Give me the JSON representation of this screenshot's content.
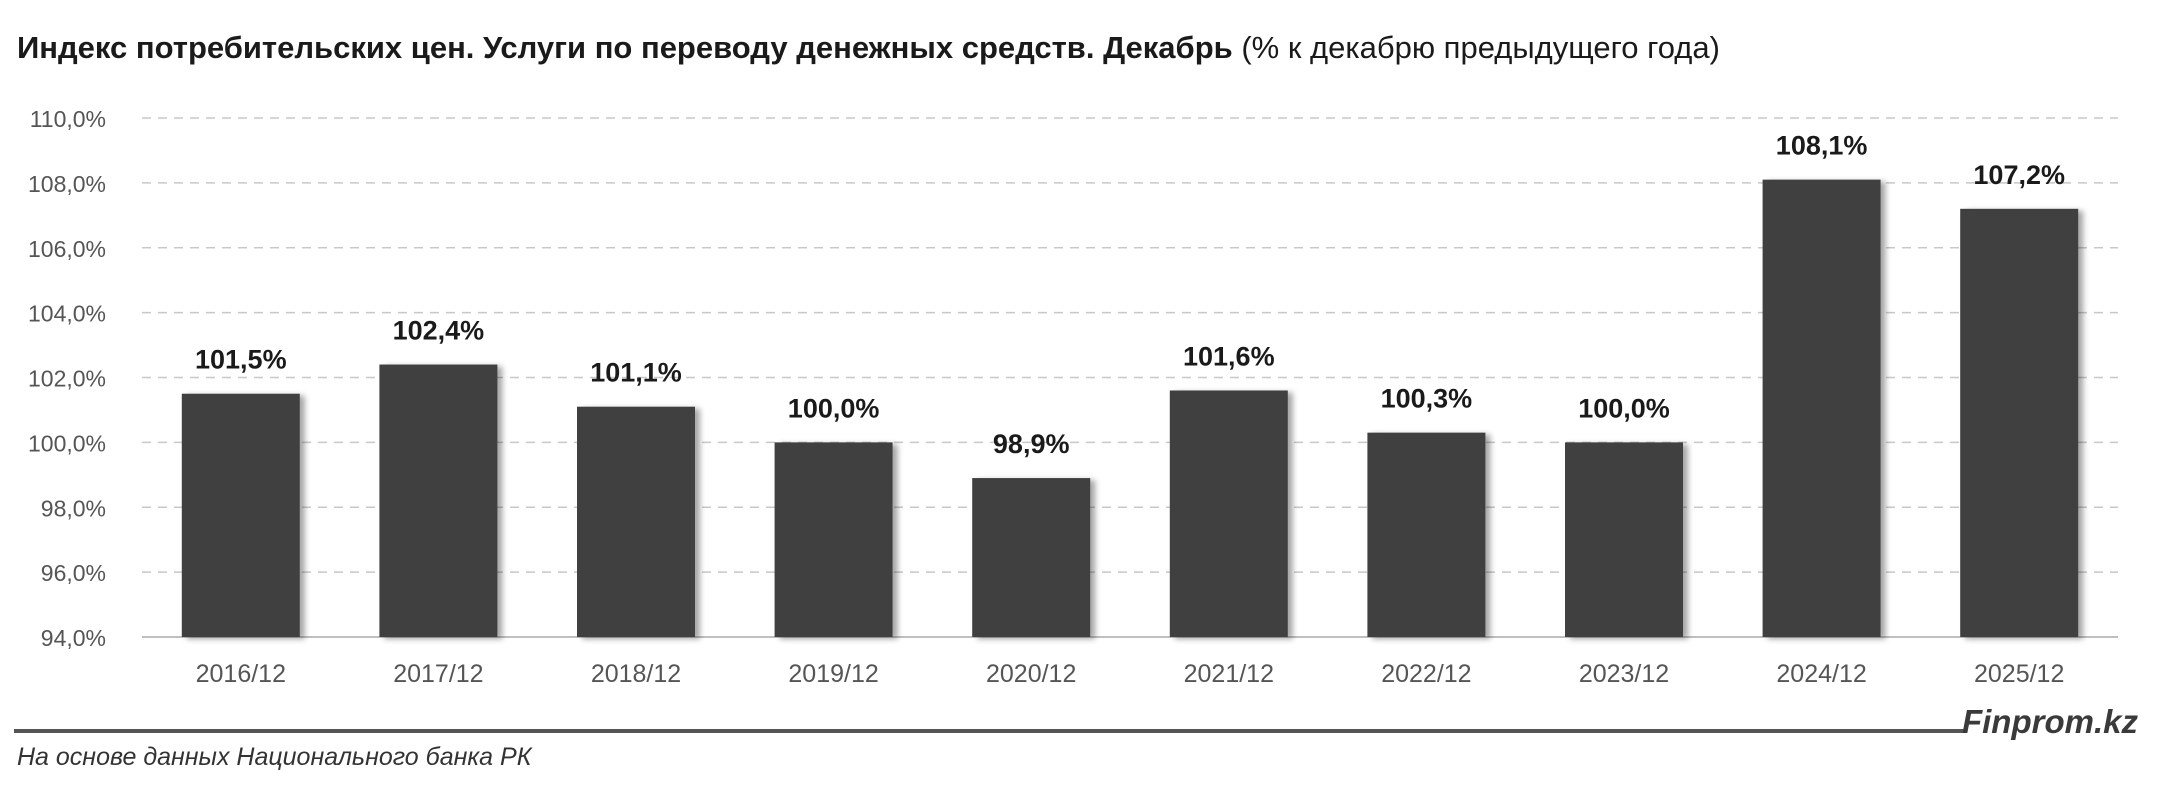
{
  "title": {
    "main": "Индекс потребительских цен. Услуги по переводу денежных средств. Декабрь",
    "sub": "(% к декабрю предыдущего года)"
  },
  "chart_data": {
    "type": "bar",
    "categories": [
      "2016/12",
      "2017/12",
      "2018/12",
      "2019/12",
      "2020/12",
      "2021/12",
      "2022/12",
      "2023/12",
      "2024/12",
      "2025/12"
    ],
    "values": [
      101.5,
      102.4,
      101.1,
      100.0,
      98.9,
      101.6,
      100.3,
      100.0,
      108.1,
      107.2
    ],
    "data_labels": [
      "101,5%",
      "102,4%",
      "101,1%",
      "100,0%",
      "98,9%",
      "101,6%",
      "100,3%",
      "100,0%",
      "108,1%",
      "107,2%"
    ],
    "ylim": [
      94,
      110
    ],
    "yticks": [
      94,
      96,
      98,
      100,
      102,
      104,
      106,
      108,
      110
    ],
    "ytick_labels": [
      "94,0%",
      "96,0%",
      "98,0%",
      "100,0%",
      "102,0%",
      "104,0%",
      "106,0%",
      "108,0%",
      "110,0%"
    ],
    "grid": true,
    "bar_color": "#404040"
  },
  "footer": {
    "source": "На основе данных Национального банка РК",
    "brand": "Finprom.kz"
  }
}
